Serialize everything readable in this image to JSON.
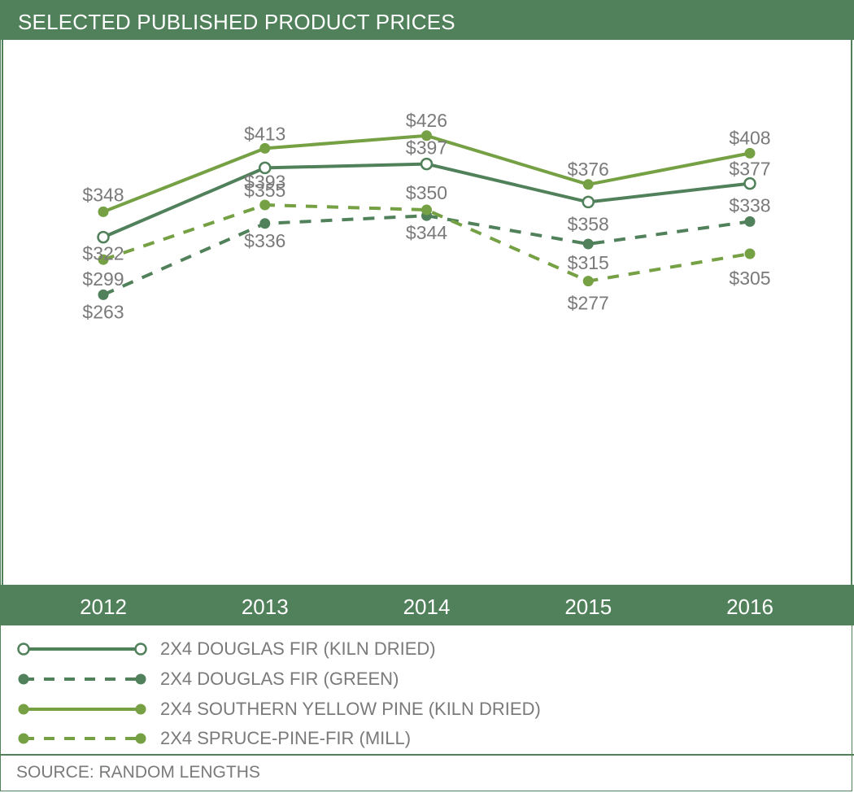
{
  "header": {
    "title": "SELECTED PUBLISHED PRODUCT PRICES"
  },
  "colors": {
    "dark_green": "#51815b",
    "light_green": "#75a043",
    "label_gray": "#7a7a7a"
  },
  "chart_data": {
    "type": "line",
    "title": "SELECTED PUBLISHED PRODUCT PRICES",
    "categories": [
      "2012",
      "2013",
      "2014",
      "2015",
      "2016"
    ],
    "xlabel": "",
    "ylabel": "",
    "ylim": [
      200,
      480
    ],
    "grid": false,
    "legend_position": "bottom",
    "series": [
      {
        "name": "2X4 DOUGLAS FIR (KILN DRIED)",
        "values": [
          322,
          393,
          397,
          358,
          377
        ],
        "labels": [
          "$322",
          "$393",
          "$397",
          "$358",
          "$377"
        ],
        "color": "#51815b",
        "style": "solid",
        "marker": "hollow"
      },
      {
        "name": "2X4 DOUGLAS FIR (GREEN)",
        "values": [
          263,
          336,
          344,
          315,
          338
        ],
        "labels": [
          "$263",
          "$336",
          "$344",
          "$315",
          "$338"
        ],
        "color": "#51815b",
        "style": "dashed",
        "marker": "filled"
      },
      {
        "name": "2X4 SOUTHERN YELLOW PINE (KILN DRIED)",
        "values": [
          348,
          413,
          426,
          376,
          408
        ],
        "labels": [
          "$348",
          "$413",
          "$426",
          "$376",
          "$408"
        ],
        "color": "#75a043",
        "style": "solid",
        "marker": "filled"
      },
      {
        "name": "2X4 SPRUCE-PINE-FIR (MILL)",
        "values": [
          299,
          355,
          350,
          277,
          305
        ],
        "labels": [
          "$299",
          "$355",
          "$350",
          "$277",
          "$305"
        ],
        "color": "#75a043",
        "style": "dashed",
        "marker": "filled"
      }
    ]
  },
  "footer": {
    "source": "SOURCE: RANDOM LENGTHS"
  }
}
